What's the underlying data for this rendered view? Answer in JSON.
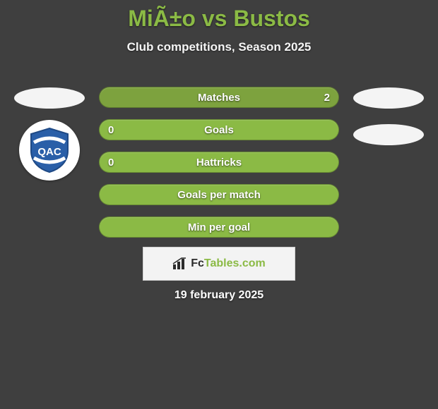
{
  "background_color": "#3f3f3f",
  "accent_color": "#8bba45",
  "text_color": "#ffffff",
  "title": "MiÃ±o vs Bustos",
  "subtitle": "Club competitions, Season 2025",
  "date": "19 february 2025",
  "brand": {
    "prefix": "Fc",
    "suffix": "Tables.com"
  },
  "club_logo": {
    "bg": "#ffffff",
    "shield_fill": "#2a5fa8",
    "letters": "QAC"
  },
  "rows": [
    {
      "label": "Matches",
      "left": "",
      "right": "2",
      "bg": "#7da23e"
    },
    {
      "label": "Goals",
      "left": "0",
      "right": "",
      "bg": "#8bba45"
    },
    {
      "label": "Hattricks",
      "left": "0",
      "right": "",
      "bg": "#8bba45"
    },
    {
      "label": "Goals per match",
      "left": "",
      "right": "",
      "bg": "#8bba45"
    },
    {
      "label": "Min per goal",
      "left": "",
      "right": "",
      "bg": "#8bba45"
    }
  ],
  "side_ellipse_color": "#f4f4f4"
}
